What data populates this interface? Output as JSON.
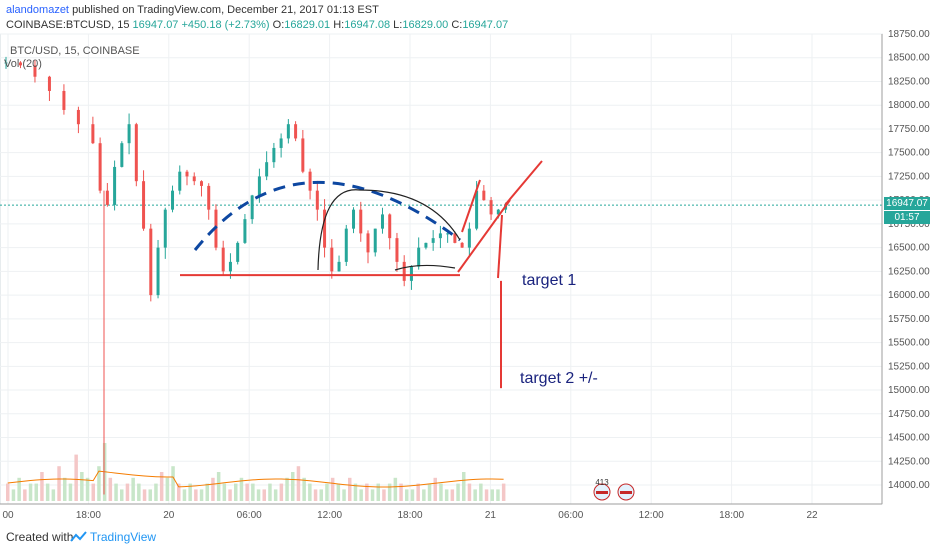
{
  "header": {
    "author": "alandomazet",
    "published_text": "published on TradingView.com, December 21, 2017 01:13 EST",
    "symbol": "COINBASE:BTCUSD, 15",
    "last": "16947.07",
    "change": "+450.18 (+2.73%)",
    "ohlc": {
      "O": "16829.01",
      "H": "16947.08",
      "L": "16829.00",
      "C": "16947.07"
    }
  },
  "legend": {
    "symbol": "BTC/USD, 15, COINBASE",
    "volume": "Vol (20)"
  },
  "price_tag": {
    "price": "16947.07",
    "countdown": "01:57"
  },
  "annotations": {
    "target1": "target 1",
    "target2": "target 2 +/-"
  },
  "footer": {
    "created_with": "Created with",
    "brand": "TradingView"
  },
  "events": {
    "badge": "413"
  },
  "colors": {
    "up": "#26a69a",
    "down": "#ef5350",
    "drawing_red": "#e53935",
    "drawing_blue": "#0d47a1",
    "dash_blue": "#0d47a1",
    "annotation_text": "#1a237e",
    "volume_ma": "#f57c00"
  },
  "chart_data": {
    "type": "candlestick",
    "symbol": "BTC/USD",
    "interval": "15",
    "ylim": [
      13800,
      18750
    ],
    "y_ticks": [
      18750,
      18500,
      18250,
      18000,
      17750,
      17500,
      17250,
      17000,
      16750,
      16500,
      16250,
      16000,
      15750,
      15500,
      15250,
      15000,
      14750,
      14500,
      14250,
      14000
    ],
    "x_ticks": [
      "00",
      "18:00",
      "20",
      "06:00",
      "12:00",
      "18:00",
      "21",
      "06:00",
      "12:00",
      "18:00",
      "22"
    ],
    "price_path": [
      [
        0,
        18450
      ],
      [
        4,
        18420
      ],
      [
        8,
        18300
      ],
      [
        12,
        18150
      ],
      [
        16,
        17950
      ],
      [
        20,
        17800
      ],
      [
        24,
        17600
      ],
      [
        26,
        17100
      ],
      [
        28,
        16950
      ],
      [
        30,
        17350
      ],
      [
        32,
        17600
      ],
      [
        34,
        17800
      ],
      [
        36,
        17200
      ],
      [
        38,
        16700
      ],
      [
        40,
        16000
      ],
      [
        42,
        16500
      ],
      [
        44,
        16900
      ],
      [
        46,
        17100
      ],
      [
        48,
        17300
      ],
      [
        50,
        17250
      ],
      [
        52,
        17200
      ],
      [
        54,
        17150
      ],
      [
        56,
        16900
      ],
      [
        58,
        16500
      ],
      [
        60,
        16250
      ],
      [
        62,
        16350
      ],
      [
        64,
        16550
      ],
      [
        66,
        16800
      ],
      [
        68,
        17050
      ],
      [
        70,
        17250
      ],
      [
        72,
        17400
      ],
      [
        74,
        17550
      ],
      [
        76,
        17650
      ],
      [
        78,
        17800
      ],
      [
        80,
        17650
      ],
      [
        82,
        17300
      ],
      [
        84,
        17100
      ],
      [
        86,
        16900
      ],
      [
        88,
        16500
      ],
      [
        90,
        16250
      ],
      [
        92,
        16350
      ],
      [
        94,
        16700
      ],
      [
        96,
        16900
      ],
      [
        98,
        16650
      ],
      [
        100,
        16450
      ],
      [
        102,
        16700
      ],
      [
        104,
        16850
      ],
      [
        106,
        16600
      ],
      [
        108,
        16350
      ],
      [
        110,
        16150
      ],
      [
        112,
        16300
      ],
      [
        114,
        16500
      ],
      [
        116,
        16550
      ],
      [
        118,
        16600
      ],
      [
        120,
        16650
      ],
      [
        122,
        16650
      ],
      [
        124,
        16550
      ],
      [
        126,
        16500
      ],
      [
        128,
        16700
      ],
      [
        130,
        17100
      ],
      [
        132,
        17000
      ],
      [
        134,
        16850
      ],
      [
        136,
        16900
      ],
      [
        138,
        16947
      ]
    ],
    "volume": [
      3,
      2,
      4,
      2,
      3,
      3,
      5,
      3,
      2,
      6,
      4,
      3,
      8,
      5,
      4,
      3,
      6,
      10,
      4,
      3,
      2,
      3,
      4,
      3,
      2,
      2,
      3,
      5,
      4,
      6,
      3,
      2,
      3,
      2,
      2,
      3,
      4,
      5,
      3,
      2,
      3,
      4,
      3,
      3,
      2,
      2,
      3,
      2,
      3,
      4,
      5,
      6,
      4,
      3,
      2,
      2,
      3,
      4,
      3,
      2,
      4,
      3,
      2,
      3,
      2,
      3,
      2,
      3,
      4,
      3,
      2,
      2,
      3,
      2,
      3,
      4,
      3,
      2,
      2,
      3,
      5,
      3,
      2,
      3,
      2,
      2,
      2,
      3
    ],
    "drawings": {
      "neckline_support": 16210,
      "target1_price": 16150,
      "target2_price": 15020
    }
  }
}
